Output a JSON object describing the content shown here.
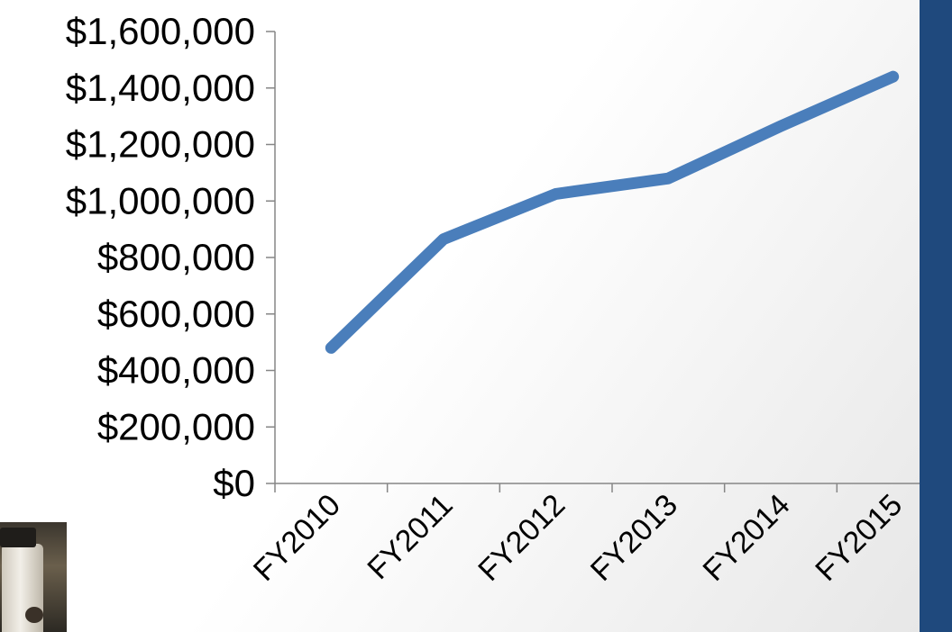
{
  "colors": {
    "line": "#4a7ebb",
    "axis": "#868686",
    "side_bar": "#1f497d",
    "text": "#000000"
  },
  "photo": {
    "icon": "photo-thumbnail"
  },
  "chart_data": {
    "type": "line",
    "categories": [
      "FY2010",
      "FY2011",
      "FY2012",
      "FY2013",
      "FY2014",
      "FY2015"
    ],
    "series": [
      {
        "values": [
          480000,
          865000,
          1025000,
          1080000,
          1265000,
          1440000
        ]
      }
    ],
    "ylim": [
      0,
      1600000
    ],
    "y_ticks": [
      0,
      200000,
      400000,
      600000,
      800000,
      1000000,
      1200000,
      1400000,
      1600000
    ],
    "y_tick_labels": [
      "$0",
      "$200,000",
      "$400,000",
      "$600,000",
      "$800,000",
      "$1,000,000",
      "$1,200,000",
      "$1,400,000",
      "$1,600,000"
    ],
    "x_tick_labels": [
      "FY2010",
      "FY2011",
      "FY2012",
      "FY2013",
      "FY2014",
      "FY2015"
    ],
    "grid": false,
    "legend": "none",
    "title": "",
    "xlabel": "",
    "ylabel": ""
  }
}
